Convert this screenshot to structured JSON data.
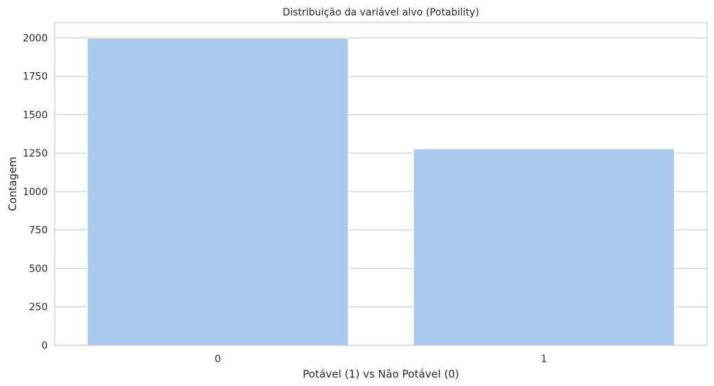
{
  "chart_data": {
    "type": "bar",
    "title": "Distribuição da variável alvo (Potability)",
    "xlabel": "Potável (1) vs Não Potável (0)",
    "ylabel": "Contagem",
    "categories": [
      "0",
      "1"
    ],
    "values": [
      1998,
      1278
    ],
    "ylim": [
      0,
      2100
    ],
    "yticks": [
      0,
      250,
      500,
      750,
      1000,
      1250,
      1500,
      1750,
      2000
    ],
    "grid": true,
    "bar_color": "#abc9ec",
    "grid_color": "#cccccc",
    "legend": null
  }
}
